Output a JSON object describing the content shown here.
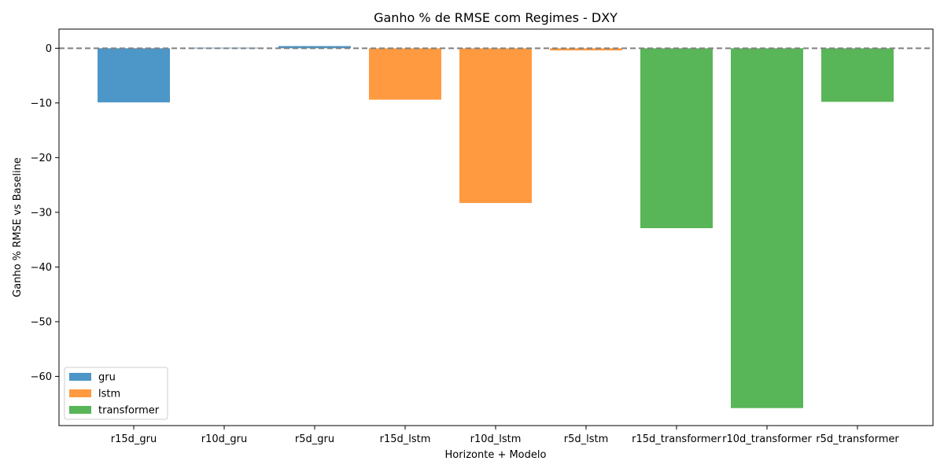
{
  "chart_data": {
    "type": "bar",
    "title": "Ganho % de RMSE com Regimes - DXY",
    "xlabel": "Horizonte + Modelo",
    "ylabel": "Ganho % RMSE vs Baseline",
    "ylim": [
      -69,
      3.5
    ],
    "yticks": [
      0,
      -10,
      -20,
      -30,
      -40,
      -50,
      -60
    ],
    "ytick_labels": [
      "0",
      "−10",
      "−20",
      "−30",
      "−40",
      "−50",
      "−60"
    ],
    "categories": [
      "r15d_gru",
      "r10d_gru",
      "r5d_gru",
      "r15d_lstm",
      "r10d_lstm",
      "r5d_lstm",
      "r15d_transformer",
      "r10d_transformer",
      "r5d_transformer"
    ],
    "values": [
      -9.9,
      0.1,
      0.4,
      -9.4,
      -28.3,
      -0.4,
      -32.9,
      -65.8,
      -9.8
    ],
    "bar_series": [
      "gru",
      "gru",
      "gru",
      "lstm",
      "lstm",
      "lstm",
      "transformer",
      "transformer",
      "transformer"
    ],
    "series": [
      {
        "name": "gru",
        "color": "#4c96c8"
      },
      {
        "name": "lstm",
        "color": "#ff9a40"
      },
      {
        "name": "transformer",
        "color": "#58b558"
      }
    ],
    "reference_line": {
      "y": 0,
      "style": "dashed",
      "color": "#808080"
    },
    "grid": false,
    "legend_position": "lower-left"
  }
}
